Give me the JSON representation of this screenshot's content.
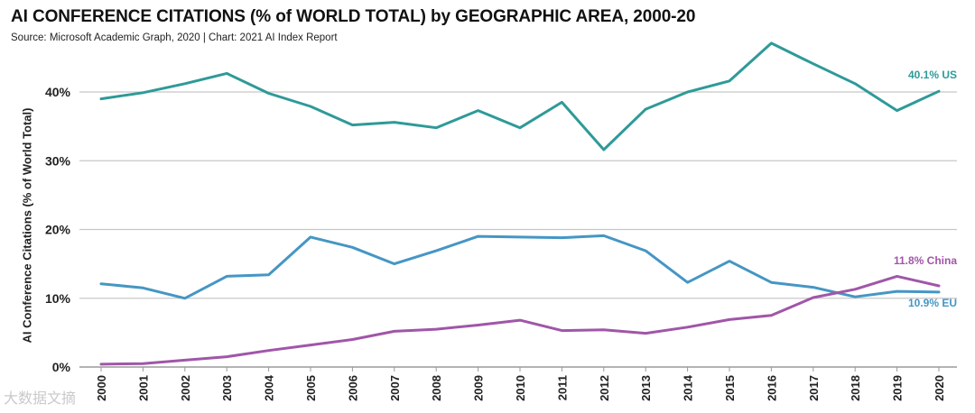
{
  "chart_data": {
    "type": "line",
    "title": "AI CONFERENCE CITATIONS (% of WORLD TOTAL) by GEOGRAPHIC AREA, 2000-20",
    "source": "Source: Microsoft Academic Graph, 2020 | Chart: 2021 AI Index Report",
    "ylabel": "AI Conference Citations (% of World Total)",
    "xlabel": "",
    "ylim": [
      0,
      45
    ],
    "yticks": [
      0,
      10,
      20,
      30,
      40
    ],
    "ytick_labels": [
      "0%",
      "10%",
      "20%",
      "30%",
      "40%"
    ],
    "categories": [
      "2000",
      "2001",
      "2002",
      "2003",
      "2004",
      "2005",
      "2006",
      "2007",
      "2008",
      "2009",
      "2010",
      "2011",
      "2012",
      "2013",
      "2014",
      "2015",
      "2016",
      "2017",
      "2018",
      "2019",
      "2020"
    ],
    "series": [
      {
        "name": "US",
        "label": "40.1% US",
        "color": "#2e9a98",
        "values": [
          39.0,
          39.9,
          41.2,
          42.7,
          39.8,
          37.9,
          35.2,
          35.6,
          34.8,
          37.3,
          34.8,
          38.5,
          31.6,
          37.5,
          40.0,
          41.6,
          47.1,
          44.1,
          41.2,
          37.3,
          40.1
        ]
      },
      {
        "name": "EU",
        "label": "10.9% EU",
        "color": "#4596c4",
        "values": [
          12.1,
          11.5,
          10.0,
          13.2,
          13.4,
          18.9,
          17.4,
          15.0,
          16.9,
          19.0,
          18.9,
          18.8,
          19.1,
          16.9,
          12.3,
          15.4,
          12.3,
          11.6,
          10.2,
          11.0,
          10.9
        ]
      },
      {
        "name": "China",
        "label": "11.8% China",
        "color": "#a056a8",
        "values": [
          0.4,
          0.5,
          1.0,
          1.5,
          2.4,
          3.2,
          4.0,
          5.2,
          5.5,
          6.1,
          6.8,
          5.3,
          5.4,
          4.9,
          5.8,
          6.9,
          7.5,
          10.1,
          11.3,
          13.2,
          11.8
        ]
      }
    ]
  },
  "watermark": "大数据文摘"
}
